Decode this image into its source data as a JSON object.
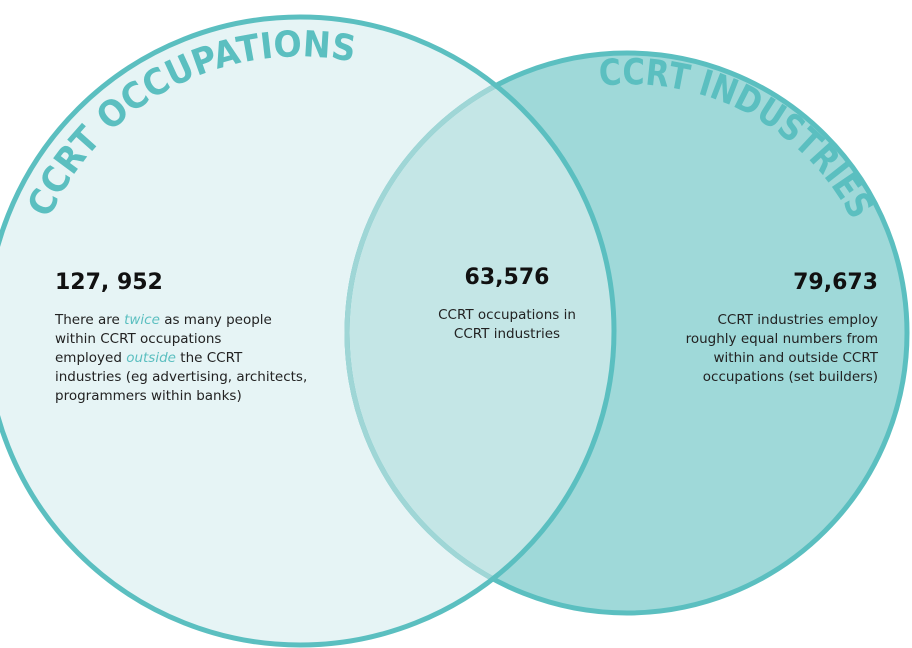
{
  "sets": [
    {
      "label": "CCRT OCCUPATIONS",
      "number": "127, 952",
      "description": [
        [
          {
            "text": "There are "
          },
          {
            "text": "twice",
            "em": true
          },
          {
            "text": " as many people"
          }
        ],
        [
          {
            "text": "within CCRT occupations"
          }
        ],
        [
          {
            "text": "employed "
          },
          {
            "text": "outside",
            "em": true
          },
          {
            "text": " the CCRT"
          }
        ],
        [
          {
            "text": "industries (eg advertising, architects,"
          }
        ],
        [
          {
            "text": "programmers within banks)"
          }
        ]
      ]
    },
    {
      "label": "CCRT INDUSTRIES",
      "number": "79,673",
      "description": [
        [
          {
            "text": "CCRT industries employ"
          }
        ],
        [
          {
            "text": "roughly equal numbers from"
          }
        ],
        [
          {
            "text": "within and outside CCRT"
          }
        ],
        [
          {
            "text": "occupations (set builders)"
          }
        ]
      ]
    }
  ],
  "intersection": {
    "number": "63,576",
    "description": [
      [
        {
          "text": "CCRT occupations in"
        }
      ],
      [
        {
          "text": "CCRT industries"
        }
      ]
    ]
  }
}
